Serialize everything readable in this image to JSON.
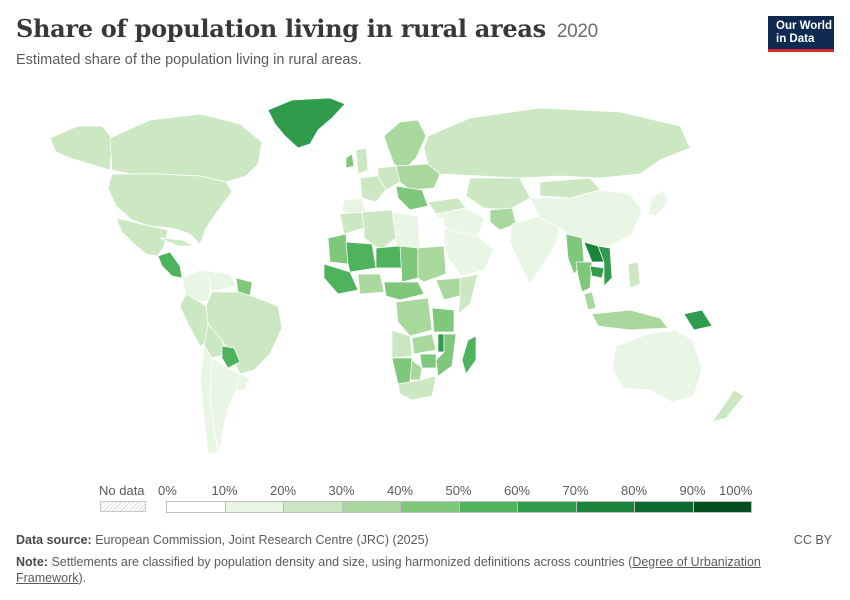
{
  "header": {
    "title": "Share of population living in rural areas",
    "year": "2020",
    "subtitle": "Estimated share of the population living in rural areas."
  },
  "logo": {
    "line1": "Our World",
    "line2": "in Data"
  },
  "legend": {
    "no_data_label": "No data",
    "ticks": [
      "0%",
      "10%",
      "20%",
      "30%",
      "40%",
      "50%",
      "60%",
      "70%",
      "80%",
      "90%",
      "100%"
    ],
    "colors": [
      "#ffffff",
      "#eaf6e5",
      "#cce8c2",
      "#a8d89c",
      "#7fc77a",
      "#4fb35d",
      "#2f9b4c",
      "#1a843b",
      "#0c6b2e",
      "#034d1f"
    ]
  },
  "footer": {
    "source_label": "Data source:",
    "source_text": "European Commission, Joint Research Centre (JRC) (2025)",
    "license": "CC BY",
    "note_label": "Note:",
    "note_text": "Settlements are classified by population density and size, using harmonized definitions across countries (",
    "note_link_1": "Degree of Urbanization",
    "note_link_2": "Framework",
    "note_end": ")."
  },
  "map_data": {
    "indicator": "Share of population living in rural areas",
    "year": 2020,
    "regions": [
      {
        "name": "Greenland",
        "bin": 6
      },
      {
        "name": "Canada",
        "bin": 2
      },
      {
        "name": "Alaska",
        "bin": 2
      },
      {
        "name": "United States",
        "bin": 2
      },
      {
        "name": "Mexico",
        "bin": 2
      },
      {
        "name": "Central America",
        "bin": 5
      },
      {
        "name": "Cuba",
        "bin": 2
      },
      {
        "name": "Colombia",
        "bin": 1
      },
      {
        "name": "Venezuela",
        "bin": 1
      },
      {
        "name": "Guyana",
        "bin": 4
      },
      {
        "name": "Brazil",
        "bin": 2
      },
      {
        "name": "Peru",
        "bin": 2
      },
      {
        "name": "Bolivia",
        "bin": 2
      },
      {
        "name": "Paraguay",
        "bin": 5
      },
      {
        "name": "Chile",
        "bin": 1
      },
      {
        "name": "Argentina",
        "bin": 1
      },
      {
        "name": "Uruguay",
        "bin": 1
      },
      {
        "name": "Scandinavia",
        "bin": 3
      },
      {
        "name": "United Kingdom",
        "bin": 2
      },
      {
        "name": "Ireland",
        "bin": 4
      },
      {
        "name": "France",
        "bin": 2
      },
      {
        "name": "Spain",
        "bin": 1
      },
      {
        "name": "Germany",
        "bin": 2
      },
      {
        "name": "Eastern Europe",
        "bin": 3
      },
      {
        "name": "Balkans",
        "bin": 4
      },
      {
        "name": "Russia",
        "bin": 2
      },
      {
        "name": "Turkey",
        "bin": 2
      },
      {
        "name": "Middle East",
        "bin": 1
      },
      {
        "name": "Arabian Peninsula",
        "bin": 1
      },
      {
        "name": "Central Asia",
        "bin": 2
      },
      {
        "name": "Afghanistan",
        "bin": 3
      },
      {
        "name": "India",
        "bin": 1
      },
      {
        "name": "China",
        "bin": 1
      },
      {
        "name": "Mongolia",
        "bin": 2
      },
      {
        "name": "Japan",
        "bin": 1
      },
      {
        "name": "Myanmar",
        "bin": 4
      },
      {
        "name": "Laos",
        "bin": 7
      },
      {
        "name": "Vietnam",
        "bin": 6
      },
      {
        "name": "Cambodia",
        "bin": 6
      },
      {
        "name": "Thailand",
        "bin": 4
      },
      {
        "name": "Malaysia",
        "bin": 3
      },
      {
        "name": "Indonesia",
        "bin": 3
      },
      {
        "name": "Philippines",
        "bin": 2
      },
      {
        "name": "Papua New Guinea",
        "bin": 6
      },
      {
        "name": "Australia",
        "bin": 1
      },
      {
        "name": "New Zealand",
        "bin": 2
      },
      {
        "name": "Morocco",
        "bin": 2
      },
      {
        "name": "Algeria",
        "bin": 2
      },
      {
        "name": "Libya",
        "bin": 1
      },
      {
        "name": "Egypt",
        "bin": 0
      },
      {
        "name": "Mauritania",
        "bin": 4
      },
      {
        "name": "Mali",
        "bin": 5
      },
      {
        "name": "Niger",
        "bin": 5
      },
      {
        "name": "Chad",
        "bin": 4
      },
      {
        "name": "Sudan",
        "bin": 3
      },
      {
        "name": "West Africa coast",
        "bin": 5
      },
      {
        "name": "Nigeria",
        "bin": 3
      },
      {
        "name": "Ethiopia",
        "bin": 3
      },
      {
        "name": "Somalia",
        "bin": 2
      },
      {
        "name": "Central Africa",
        "bin": 4
      },
      {
        "name": "DR Congo",
        "bin": 3
      },
      {
        "name": "Angola",
        "bin": 2
      },
      {
        "name": "Tanzania",
        "bin": 4
      },
      {
        "name": "Mozambique",
        "bin": 4
      },
      {
        "name": "Zambia",
        "bin": 3
      },
      {
        "name": "Zimbabwe",
        "bin": 4
      },
      {
        "name": "Malawi",
        "bin": 6
      },
      {
        "name": "Namibia",
        "bin": 4
      },
      {
        "name": "Botswana",
        "bin": 3
      },
      {
        "name": "South Africa",
        "bin": 2
      },
      {
        "name": "Madagascar",
        "bin": 5
      }
    ]
  }
}
